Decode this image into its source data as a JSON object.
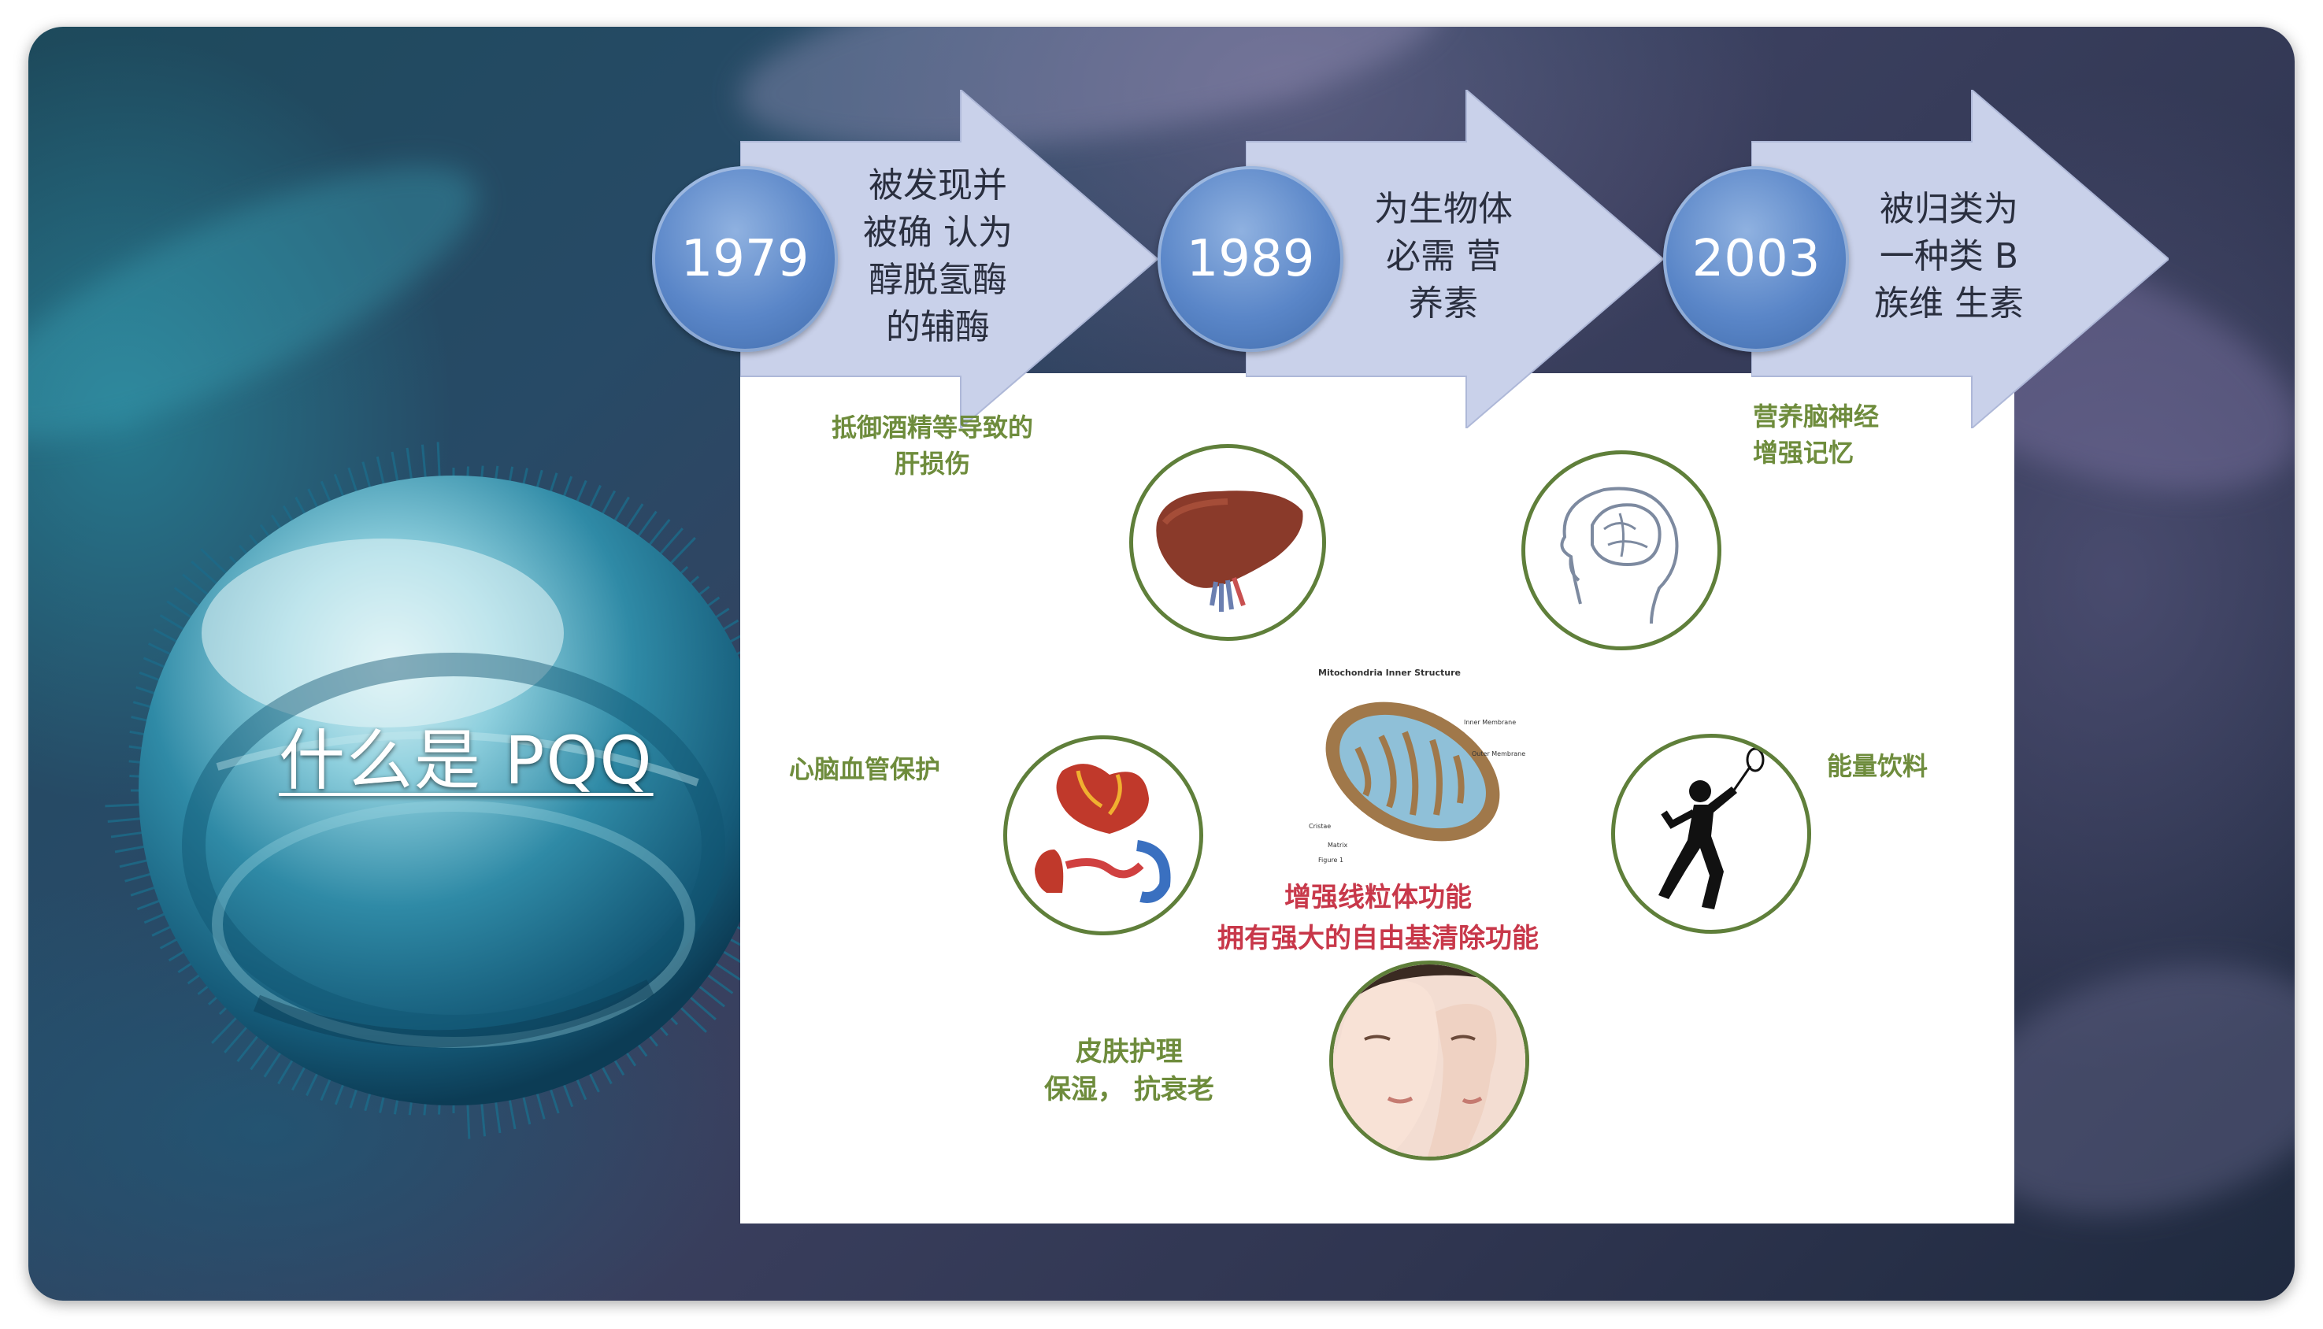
{
  "slide": {
    "title": "什么是 PQQ"
  },
  "timeline": [
    {
      "year": "1979",
      "lines": [
        "被发现并",
        "被确 认为",
        "醇脱氢酶",
        "的辅酶"
      ]
    },
    {
      "year": "1989",
      "lines": [
        "为生物体",
        "必需 营",
        "养素"
      ]
    },
    {
      "year": "2003",
      "lines": [
        "被归类为",
        "一种类 B",
        "族维 生素"
      ]
    }
  ],
  "benefits": {
    "liver": [
      "抵御酒精等导致的",
      "肝损伤"
    ],
    "brain": [
      "营养脑神经",
      "增强记忆"
    ],
    "heart": "心脑血管保护",
    "energy": "能量饮料",
    "mito_caption": [
      "增强线粒体功能",
      "拥有强大的自由基清除功能"
    ],
    "skin": [
      "皮肤护理",
      "保湿，  抗衰老"
    ],
    "mito_diagram_title": "Mitochondria Inner Structure",
    "mito_labels": [
      "Inner Membrane",
      "Outer Membrane",
      "Cristae",
      "Matrix",
      "Figure 1"
    ]
  },
  "colors": {
    "green": "#6e8c3c",
    "red": "#c8384a",
    "arrow": "#c9d1ea",
    "circle": "#5a86c8"
  },
  "icons": [
    "sphere-graphic",
    "liver-icon",
    "brain-head-icon",
    "heart-icon",
    "mitochondria-icon",
    "badminton-player-icon",
    "face-icon"
  ]
}
